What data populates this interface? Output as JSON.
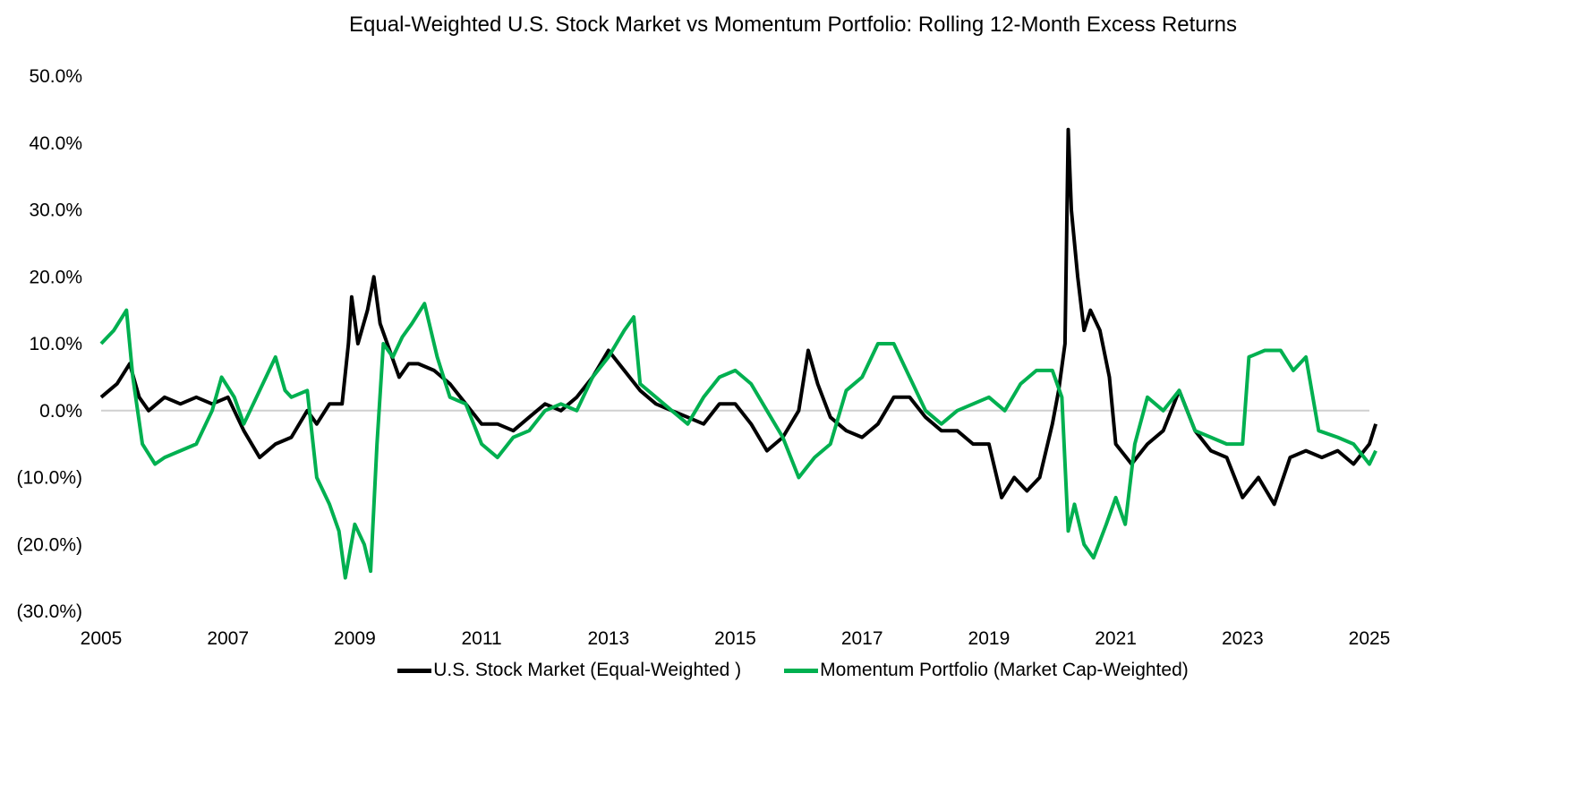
{
  "chart_data": {
    "type": "line",
    "title": "Equal-Weighted U.S. Stock Market vs Momentum Portfolio: Rolling 12-Month Excess Returns",
    "xlabel": "",
    "ylabel": "",
    "xlim": [
      2005,
      2025
    ],
    "ylim": [
      -30,
      50
    ],
    "x_ticks": [
      "2005",
      "2007",
      "2009",
      "2011",
      "2013",
      "2015",
      "2017",
      "2019",
      "2021",
      "2023",
      "2025"
    ],
    "y_ticks": [
      "50.0%",
      "40.0%",
      "30.0%",
      "20.0%",
      "10.0%",
      "0.0%",
      "(10.0%)",
      "(20.0%)",
      "(30.0%)"
    ],
    "grid": false,
    "zero_line": true,
    "legend_position": "bottom",
    "series": [
      {
        "name": "U.S. Stock Market (Equal-Weighted )",
        "color": "#000000",
        "x": [
          2005.0,
          2005.25,
          2005.45,
          2005.6,
          2005.75,
          2006.0,
          2006.25,
          2006.5,
          2006.75,
          2007.0,
          2007.25,
          2007.5,
          2007.75,
          2008.0,
          2008.25,
          2008.4,
          2008.6,
          2008.8,
          2008.9,
          2008.95,
          2009.05,
          2009.2,
          2009.3,
          2009.4,
          2009.55,
          2009.7,
          2009.85,
          2010.0,
          2010.25,
          2010.5,
          2010.75,
          2011.0,
          2011.25,
          2011.5,
          2011.75,
          2012.0,
          2012.25,
          2012.5,
          2012.75,
          2013.0,
          2013.25,
          2013.5,
          2013.75,
          2014.0,
          2014.25,
          2014.5,
          2014.75,
          2015.0,
          2015.25,
          2015.5,
          2015.75,
          2016.0,
          2016.15,
          2016.3,
          2016.5,
          2016.75,
          2017.0,
          2017.25,
          2017.5,
          2017.75,
          2018.0,
          2018.25,
          2018.5,
          2018.75,
          2019.0,
          2019.2,
          2019.4,
          2019.6,
          2019.8,
          2020.0,
          2020.1,
          2020.2,
          2020.25,
          2020.3,
          2020.4,
          2020.5,
          2020.6,
          2020.75,
          2020.9,
          2021.0,
          2021.25,
          2021.5,
          2021.75,
          2022.0,
          2022.25,
          2022.5,
          2022.75,
          2023.0,
          2023.25,
          2023.5,
          2023.75,
          2024.0,
          2024.25,
          2024.5,
          2024.75,
          2025.0,
          2025.1
        ],
        "y": [
          2,
          4,
          7,
          2,
          0,
          2,
          1,
          2,
          1,
          2,
          -3,
          -7,
          -5,
          -4,
          0,
          -2,
          1,
          1,
          10,
          17,
          10,
          15,
          20,
          13,
          9,
          5,
          7,
          7,
          6,
          4,
          1,
          -2,
          -2,
          -3,
          -1,
          1,
          0,
          2,
          5,
          9,
          6,
          3,
          1,
          0,
          -1,
          -2,
          1,
          1,
          -2,
          -6,
          -4,
          0,
          9,
          4,
          -1,
          -3,
          -4,
          -2,
          2,
          2,
          -1,
          -3,
          -3,
          -5,
          -5,
          -13,
          -10,
          -12,
          -10,
          -2,
          3,
          10,
          42,
          30,
          20,
          12,
          15,
          12,
          5,
          -5,
          -8,
          -5,
          -3,
          3,
          -3,
          -6,
          -7,
          -13,
          -10,
          -14,
          -7,
          -6,
          -7,
          -6,
          -8,
          -5,
          -2
        ]
      },
      {
        "name": "Momentum Portfolio (Market Cap-Weighted)",
        "color": "#00b050",
        "x": [
          2005.0,
          2005.2,
          2005.4,
          2005.5,
          2005.65,
          2005.85,
          2006.0,
          2006.25,
          2006.5,
          2006.75,
          2006.9,
          2007.1,
          2007.25,
          2007.5,
          2007.75,
          2007.9,
          2008.0,
          2008.25,
          2008.4,
          2008.6,
          2008.75,
          2008.85,
          2009.0,
          2009.15,
          2009.25,
          2009.35,
          2009.45,
          2009.6,
          2009.75,
          2009.9,
          2010.1,
          2010.3,
          2010.5,
          2010.75,
          2011.0,
          2011.25,
          2011.5,
          2011.75,
          2012.0,
          2012.25,
          2012.5,
          2012.75,
          2013.0,
          2013.25,
          2013.4,
          2013.5,
          2013.75,
          2014.0,
          2014.25,
          2014.5,
          2014.75,
          2015.0,
          2015.25,
          2015.5,
          2015.75,
          2016.0,
          2016.25,
          2016.5,
          2016.75,
          2017.0,
          2017.25,
          2017.5,
          2017.75,
          2018.0,
          2018.25,
          2018.5,
          2018.75,
          2019.0,
          2019.25,
          2019.5,
          2019.75,
          2020.0,
          2020.15,
          2020.25,
          2020.35,
          2020.5,
          2020.65,
          2020.85,
          2021.0,
          2021.15,
          2021.3,
          2021.5,
          2021.75,
          2022.0,
          2022.25,
          2022.5,
          2022.75,
          2023.0,
          2023.1,
          2023.35,
          2023.6,
          2023.8,
          2024.0,
          2024.2,
          2024.5,
          2024.75,
          2025.0,
          2025.1
        ],
        "y": [
          10,
          12,
          15,
          5,
          -5,
          -8,
          -7,
          -6,
          -5,
          0,
          5,
          2,
          -2,
          3,
          8,
          3,
          2,
          3,
          -10,
          -14,
          -18,
          -25,
          -17,
          -20,
          -24,
          -5,
          10,
          8,
          11,
          13,
          16,
          8,
          2,
          1,
          -5,
          -7,
          -4,
          -3,
          0,
          1,
          0,
          5,
          8,
          12,
          14,
          4,
          2,
          0,
          -2,
          2,
          5,
          6,
          4,
          0,
          -4,
          -10,
          -7,
          -5,
          3,
          5,
          10,
          10,
          5,
          0,
          -2,
          0,
          1,
          2,
          0,
          4,
          6,
          6,
          2,
          -18,
          -14,
          -20,
          -22,
          -17,
          -13,
          -17,
          -5,
          2,
          0,
          3,
          -3,
          -4,
          -5,
          -5,
          8,
          9,
          9,
          6,
          8,
          -3,
          -4,
          -5,
          -8,
          -6
        ]
      }
    ]
  }
}
